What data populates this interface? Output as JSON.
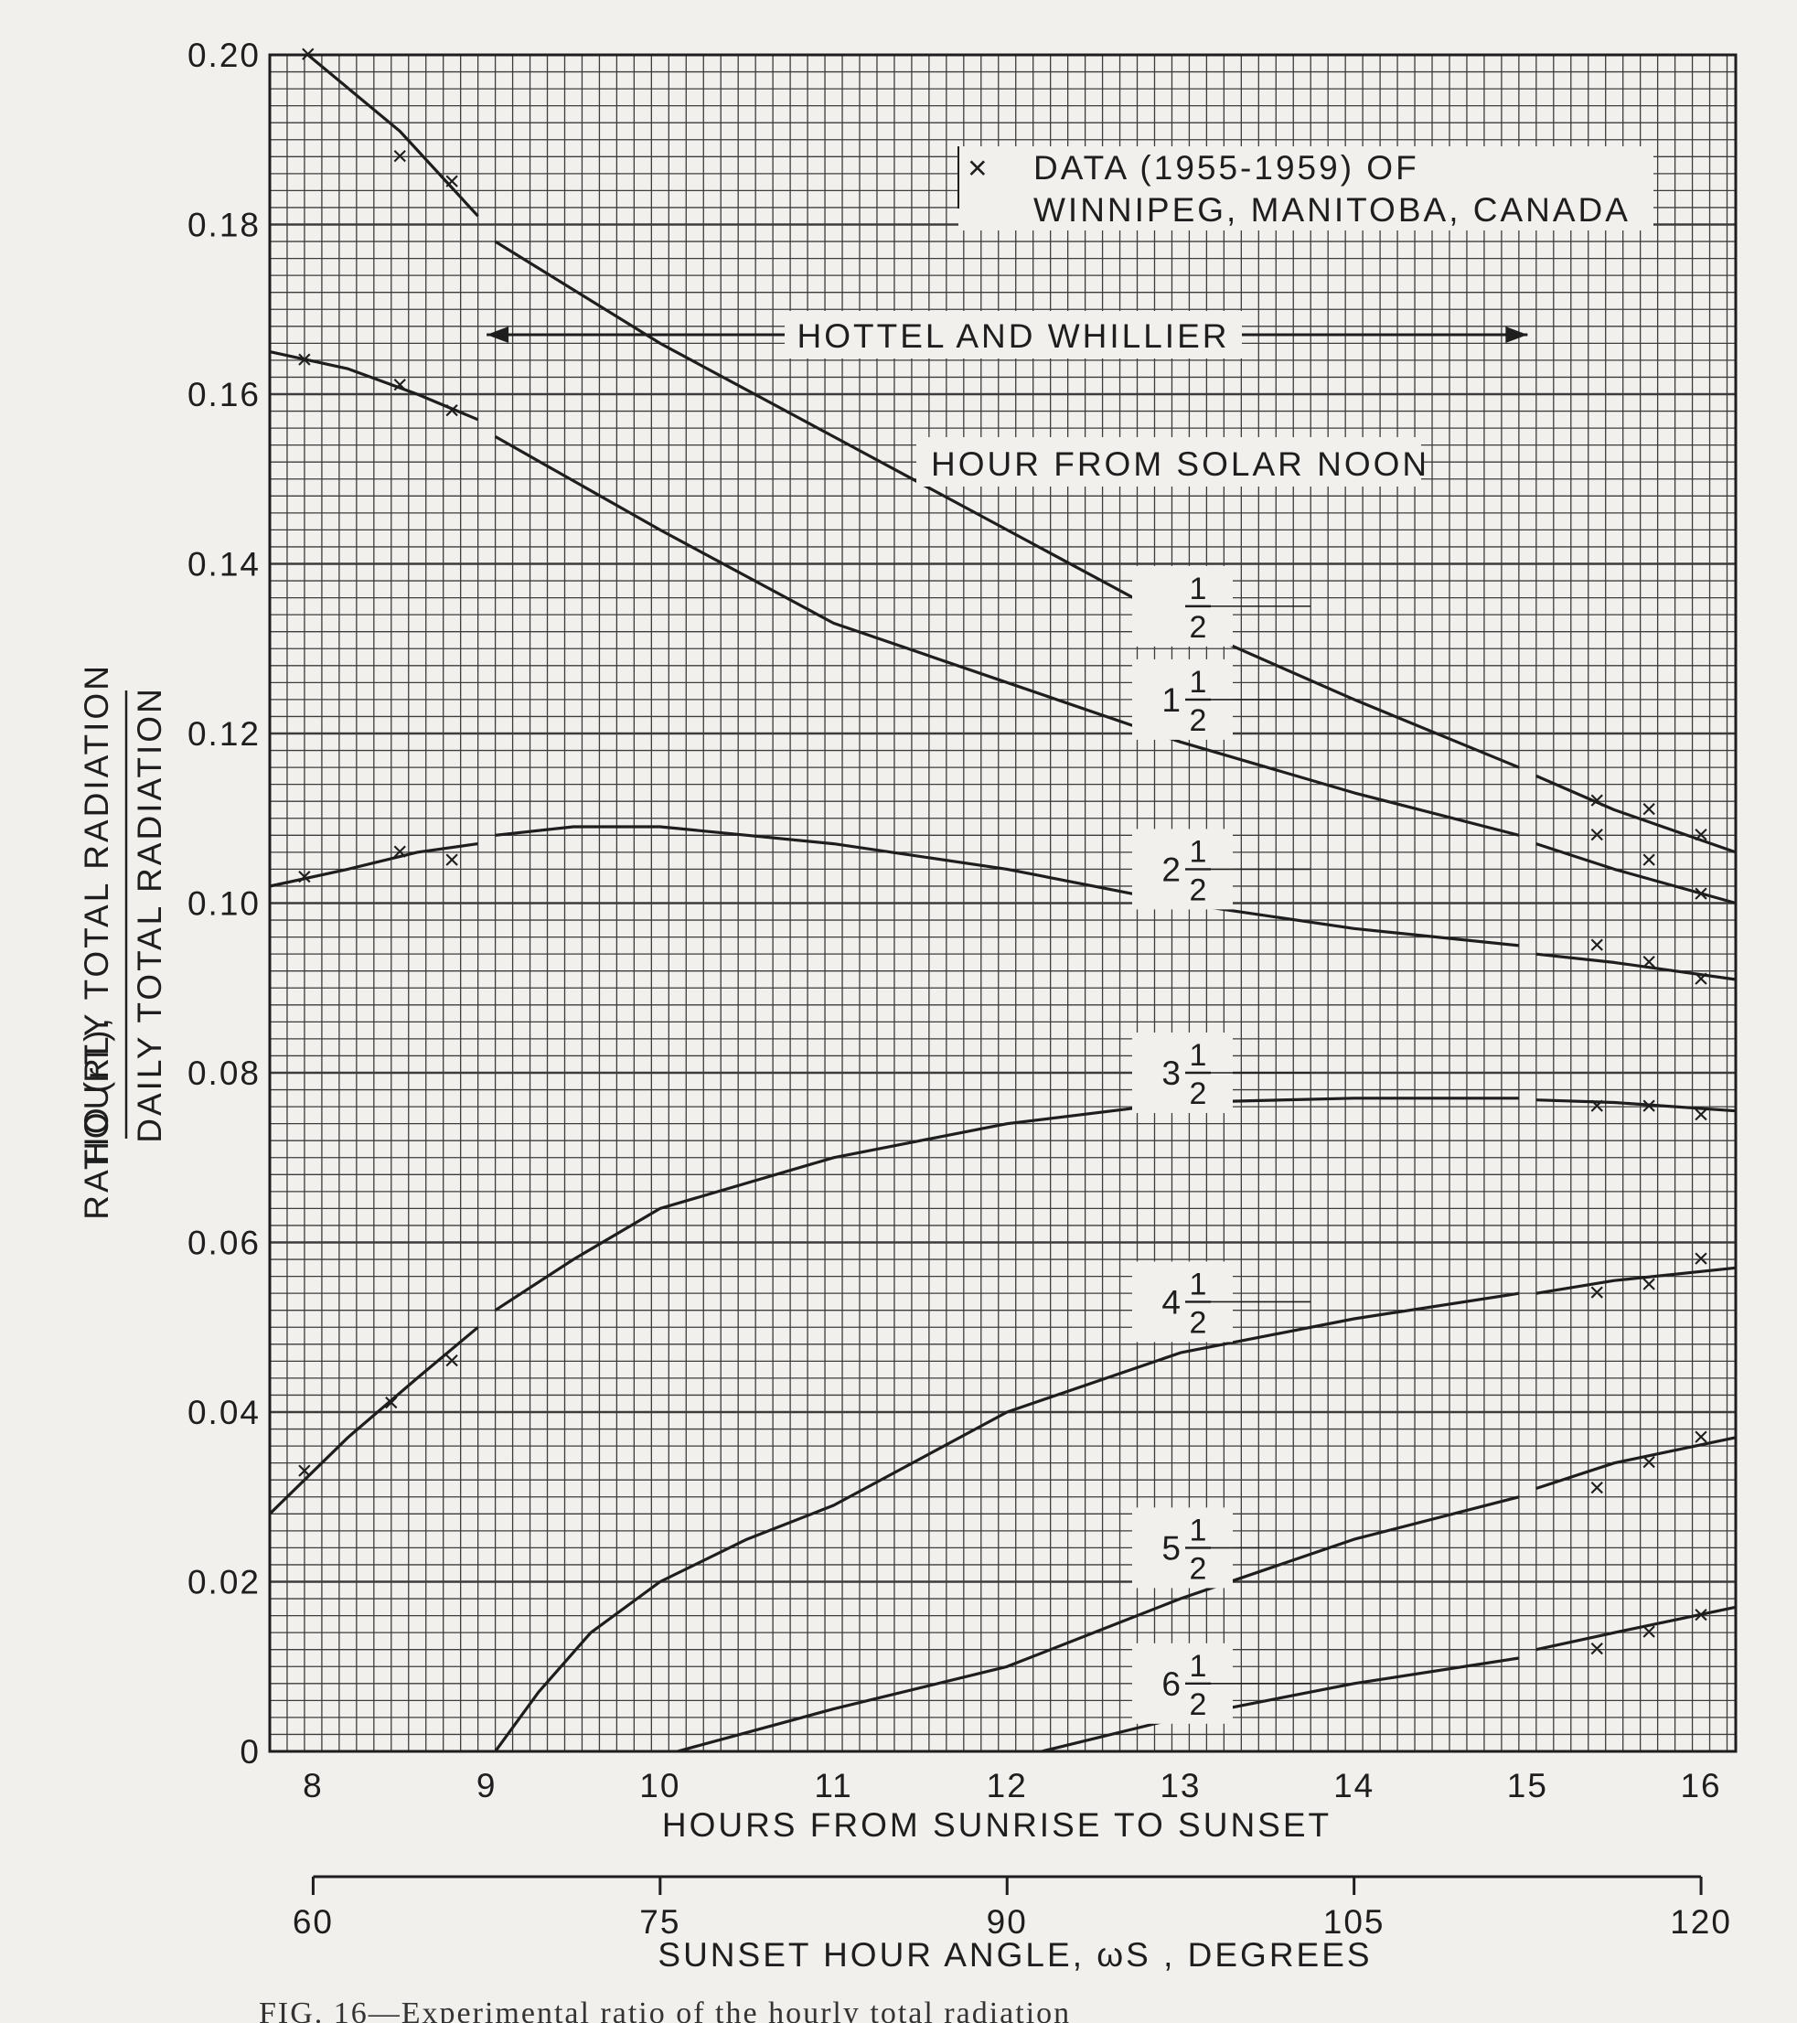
{
  "chart_data": {
    "type": "line",
    "xlabel": "HOURS FROM SUNRISE TO SUNSET",
    "x2label": "SUNSET HOUR ANGLE, ωS , DEGREES",
    "ylabel_prefix": "RATIO (rT),",
    "ylabel_numerator": "HOURLY TOTAL RADIATION",
    "ylabel_denominator": "DAILY TOTAL RADIATION",
    "xlim": [
      7.75,
      16.2
    ],
    "ylim": [
      0,
      0.2
    ],
    "x_ticks": [
      8,
      9,
      10,
      11,
      12,
      13,
      14,
      15,
      16
    ],
    "x_tick_labels": [
      "8",
      "9",
      "10",
      "11",
      "12",
      "13",
      "14",
      "15",
      "16"
    ],
    "y_ticks": [
      0,
      0.02,
      0.04,
      0.06,
      0.08,
      0.1,
      0.12,
      0.14,
      0.16,
      0.18,
      0.2
    ],
    "y_tick_labels": [
      "0",
      "0.02",
      "0.04",
      "0.06",
      "0.08",
      "0.10",
      "0.12",
      "0.14",
      "0.16",
      "0.18",
      "0.20"
    ],
    "x2_ticks": [
      60,
      75,
      90,
      105,
      120
    ],
    "x2_tick_labels": [
      "60",
      "75",
      "90",
      "105",
      "120"
    ],
    "grid": true,
    "legend_text_line1": "DATA (1955-1959) OF",
    "legend_text_line2": "WINNIPEG, MANITOBA, CANADA",
    "legend_marker": "×",
    "hottel_label": "HOTTEL AND WHILLIER",
    "hottel_range": [
      9,
      15
    ],
    "curves_title": "HOUR FROM SOLAR NOON",
    "series": [
      {
        "whole": "",
        "num": "1",
        "den": "2",
        "segments": [
          [
            [
              7.97,
              0.2
            ],
            [
              8.5,
              0.191
            ],
            [
              8.95,
              0.181
            ]
          ],
          [
            [
              9.05,
              0.178
            ],
            [
              10,
              0.166
            ],
            [
              11,
              0.155
            ],
            [
              12,
              0.144
            ],
            [
              13,
              0.133
            ],
            [
              14,
              0.124
            ],
            [
              14.95,
              0.116
            ]
          ],
          [
            [
              15.05,
              0.115
            ],
            [
              15.5,
              0.111
            ],
            [
              16.2,
              0.106
            ]
          ]
        ],
        "data": [
          [
            7.97,
            0.2
          ],
          [
            8.5,
            0.188
          ],
          [
            8.8,
            0.185
          ],
          [
            15.4,
            0.112
          ],
          [
            15.7,
            0.111
          ],
          [
            16,
            0.108
          ]
        ]
      },
      {
        "whole": "1",
        "num": "1",
        "den": "2",
        "segments": [
          [
            [
              7.75,
              0.165
            ],
            [
              8.2,
              0.163
            ],
            [
              8.6,
              0.16
            ],
            [
              8.95,
              0.157
            ]
          ],
          [
            [
              9.05,
              0.155
            ],
            [
              10,
              0.144
            ],
            [
              11,
              0.133
            ],
            [
              12,
              0.126
            ],
            [
              13,
              0.119
            ],
            [
              14,
              0.113
            ],
            [
              14.95,
              0.108
            ]
          ],
          [
            [
              15.05,
              0.107
            ],
            [
              15.5,
              0.104
            ],
            [
              16.2,
              0.1
            ]
          ]
        ],
        "data": [
          [
            7.95,
            0.164
          ],
          [
            8.5,
            0.161
          ],
          [
            8.8,
            0.158
          ],
          [
            15.4,
            0.108
          ],
          [
            15.7,
            0.105
          ],
          [
            16,
            0.101
          ]
        ]
      },
      {
        "whole": "2",
        "num": "1",
        "den": "2",
        "segments": [
          [
            [
              7.75,
              0.102
            ],
            [
              8.2,
              0.104
            ],
            [
              8.6,
              0.106
            ],
            [
              8.95,
              0.107
            ]
          ],
          [
            [
              9.05,
              0.108
            ],
            [
              9.5,
              0.109
            ],
            [
              10,
              0.109
            ],
            [
              11,
              0.107
            ],
            [
              12,
              0.104
            ],
            [
              13,
              0.1
            ],
            [
              14,
              0.097
            ],
            [
              14.95,
              0.095
            ]
          ],
          [
            [
              15.05,
              0.094
            ],
            [
              15.5,
              0.093
            ],
            [
              16.2,
              0.091
            ]
          ]
        ],
        "data": [
          [
            7.95,
            0.103
          ],
          [
            8.5,
            0.106
          ],
          [
            8.8,
            0.105
          ],
          [
            15.4,
            0.095
          ],
          [
            15.7,
            0.093
          ],
          [
            16,
            0.091
          ]
        ]
      },
      {
        "whole": "3",
        "num": "1",
        "den": "2",
        "segments": [
          [
            [
              7.75,
              0.028
            ],
            [
              8.2,
              0.037
            ],
            [
              8.6,
              0.044
            ],
            [
              8.95,
              0.05
            ]
          ],
          [
            [
              9.05,
              0.052
            ],
            [
              9.5,
              0.058
            ],
            [
              10,
              0.064
            ],
            [
              11,
              0.07
            ],
            [
              12,
              0.074
            ],
            [
              13,
              0.0765
            ],
            [
              14,
              0.077
            ],
            [
              14.95,
              0.077
            ]
          ],
          [
            [
              15.05,
              0.0768
            ],
            [
              15.5,
              0.0765
            ],
            [
              16.2,
              0.0755
            ]
          ]
        ],
        "data": [
          [
            7.95,
            0.033
          ],
          [
            8.45,
            0.041
          ],
          [
            8.8,
            0.046
          ],
          [
            15.4,
            0.076
          ],
          [
            15.7,
            0.076
          ],
          [
            16,
            0.075
          ]
        ]
      },
      {
        "whole": "4",
        "num": "1",
        "den": "2",
        "segments": [
          [
            [
              9.05,
              0
            ],
            [
              9.3,
              0.007
            ],
            [
              9.6,
              0.014
            ],
            [
              10,
              0.02
            ],
            [
              10.5,
              0.025
            ],
            [
              11,
              0.029
            ],
            [
              12,
              0.04
            ],
            [
              13,
              0.047
            ],
            [
              14,
              0.051
            ],
            [
              14.95,
              0.054
            ]
          ],
          [
            [
              15.05,
              0.054
            ],
            [
              15.5,
              0.0555
            ],
            [
              16.2,
              0.057
            ]
          ]
        ],
        "data": [
          [
            15.4,
            0.054
          ],
          [
            15.7,
            0.055
          ],
          [
            16,
            0.058
          ]
        ]
      },
      {
        "whole": "5",
        "num": "1",
        "den": "2",
        "segments": [
          [
            [
              10.1,
              0
            ],
            [
              11,
              0.005
            ],
            [
              12,
              0.01
            ],
            [
              13,
              0.018
            ],
            [
              14,
              0.025
            ],
            [
              14.95,
              0.03
            ]
          ],
          [
            [
              15.05,
              0.031
            ],
            [
              15.5,
              0.034
            ],
            [
              16.2,
              0.037
            ]
          ]
        ],
        "data": [
          [
            15.4,
            0.031
          ],
          [
            15.7,
            0.034
          ],
          [
            16,
            0.037
          ]
        ]
      },
      {
        "whole": "6",
        "num": "1",
        "den": "2",
        "segments": [
          [
            [
              12.2,
              0
            ],
            [
              13,
              0.004
            ],
            [
              14,
              0.008
            ],
            [
              14.95,
              0.011
            ]
          ],
          [
            [
              15.05,
              0.012
            ],
            [
              15.5,
              0.014
            ],
            [
              16.2,
              0.017
            ]
          ]
        ],
        "data": [
          [
            15.4,
            0.012
          ],
          [
            15.7,
            0.014
          ],
          [
            16,
            0.016
          ]
        ]
      }
    ],
    "curve_label_y": [
      0.135,
      0.124,
      0.104,
      0.08,
      0.053,
      0.024,
      0.008
    ]
  },
  "caption": "FIG. 16—Experimental ratio of the hourly total radiation",
  "colors": {
    "ink": "#1e1e1e",
    "paper": "#f2f0ec",
    "grid": "#3c3c3c"
  }
}
